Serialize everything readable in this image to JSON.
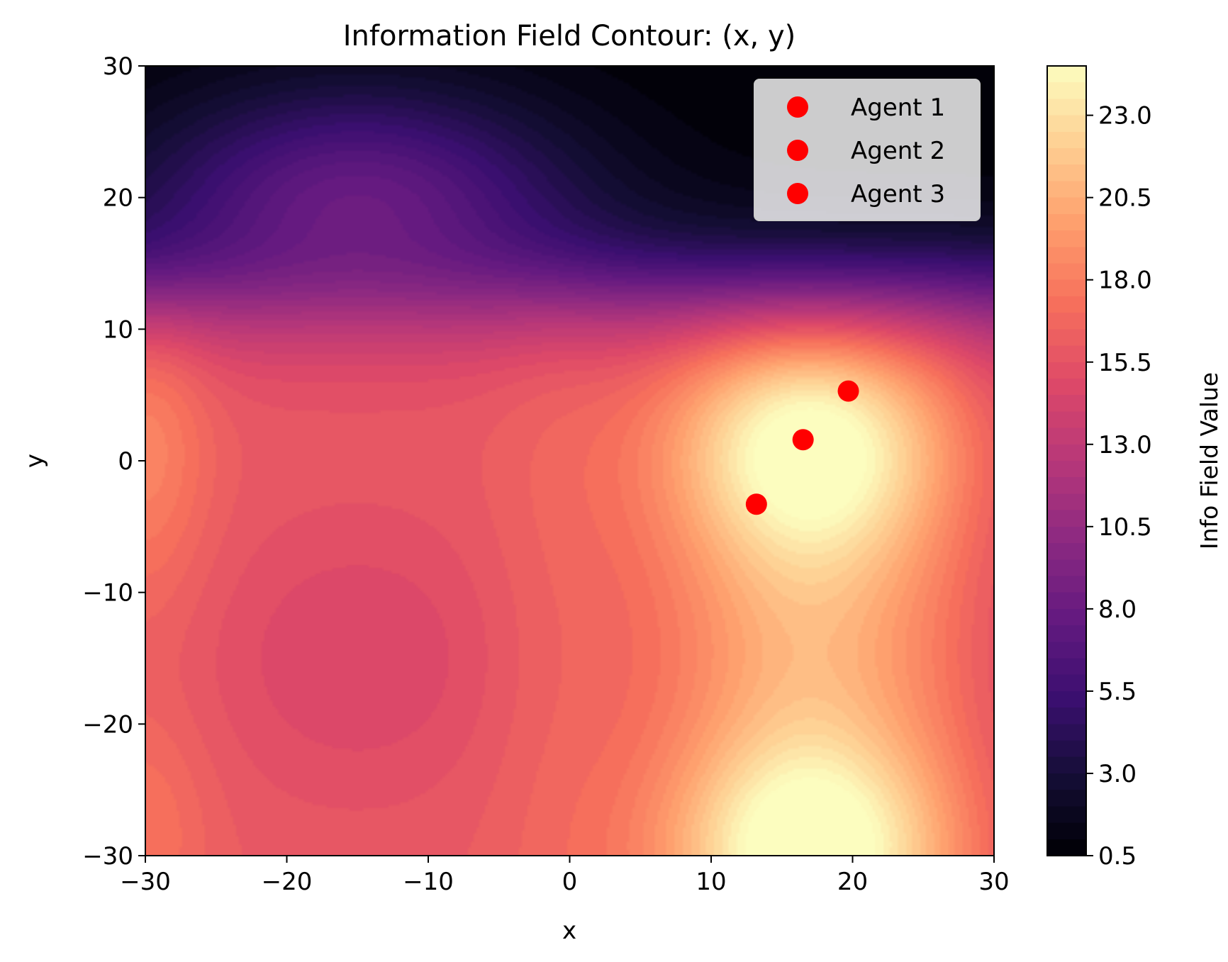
{
  "chart_data": {
    "type": "contour",
    "title": "Information Field Contour: (x, y)",
    "xlabel": "x",
    "ylabel": "y",
    "xlim": [
      -30,
      30
    ],
    "ylim": [
      -30,
      30
    ],
    "x_ticks": [
      -30,
      -20,
      -10,
      0,
      10,
      20,
      30
    ],
    "y_ticks": [
      -30,
      -20,
      -10,
      0,
      10,
      20,
      30
    ],
    "x_tick_labels": [
      "−30",
      "−20",
      "−10",
      "0",
      "10",
      "20",
      "30"
    ],
    "y_tick_labels": [
      "−30",
      "−20",
      "−10",
      "0",
      "10",
      "20",
      "30"
    ],
    "colormap": "magma",
    "colorbar": {
      "label": "Info Field Value",
      "range": [
        0.5,
        24.5
      ],
      "ticks": [
        0.5,
        3.0,
        5.5,
        8.0,
        10.5,
        13.0,
        15.5,
        18.0,
        20.5,
        23.0
      ],
      "tick_labels": [
        "0.5",
        "3.0",
        "5.5",
        "8.0",
        "10.5",
        "13.0",
        "15.5",
        "18.0",
        "20.5",
        "23.0"
      ]
    },
    "field_features": [
      {
        "kind": "peak",
        "x": 17,
        "y": 1.5,
        "value": 24
      },
      {
        "kind": "peak",
        "x": 17,
        "y": -30,
        "value": 24
      },
      {
        "kind": "local-min",
        "x": -15,
        "y": -15,
        "value": 14.5
      },
      {
        "kind": "low-region",
        "y": 30,
        "value": 0.5
      }
    ],
    "series": [
      {
        "name": "Agent 1",
        "color": "#ff0000",
        "points": [
          {
            "x": 13.2,
            "y": -3.3
          }
        ]
      },
      {
        "name": "Agent 2",
        "color": "#ff0000",
        "points": [
          {
            "x": 16.5,
            "y": 1.6
          }
        ]
      },
      {
        "name": "Agent 3",
        "color": "#ff0000",
        "points": [
          {
            "x": 19.7,
            "y": 5.3
          }
        ]
      }
    ],
    "legend": {
      "placement": "top-right",
      "entries": [
        "Agent 1",
        "Agent 2",
        "Agent 3"
      ]
    },
    "grid": false
  }
}
